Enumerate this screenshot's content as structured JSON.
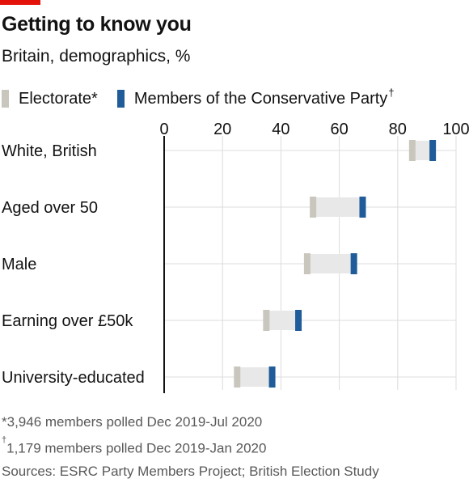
{
  "header": {
    "title": "Getting to know you",
    "subtitle": "Britain, demographics, %"
  },
  "legend": {
    "electorate_label": "Electorate*",
    "members_label": "Members of the Conservative Party",
    "members_mark": "†"
  },
  "notes": {
    "note1": "*3,946 members polled Dec 2019-Jul 2020",
    "note2_mark": "†",
    "note2": "1,179 members polled Dec 2019-Jan 2020",
    "source": "Sources: ESRC Party Members Project; British Election Study"
  },
  "colors": {
    "electorate": "#c9c7bd",
    "members": "#1f5c99",
    "range": "#e8e8e8",
    "grid": "#dcdcdc",
    "accent": "#e3120b"
  },
  "chart_data": {
    "type": "dot",
    "title": "Getting to know you",
    "subtitle": "Britain, demographics, %",
    "xlim": [
      0,
      100
    ],
    "xticks": [
      0,
      20,
      40,
      60,
      80,
      100
    ],
    "grid": true,
    "legend_position": "top-left",
    "categories": [
      "White, British",
      "Aged over 50",
      "Male",
      "Earning over £50k",
      "University-educated"
    ],
    "series": [
      {
        "name": "Electorate*",
        "values": [
          85,
          51,
          49,
          35,
          25
        ]
      },
      {
        "name": "Members of the Conservative Party†",
        "values": [
          92,
          68,
          65,
          46,
          37
        ]
      }
    ]
  }
}
